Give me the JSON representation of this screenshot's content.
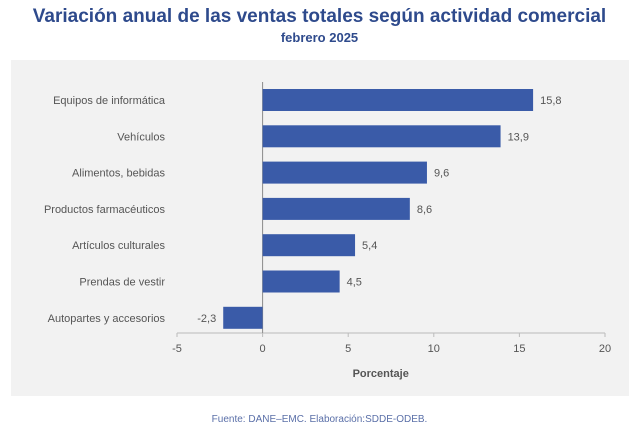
{
  "chart_data": {
    "type": "bar",
    "orientation": "horizontal",
    "title": "Variación anual de las ventas totales según actividad comercial",
    "subtitle": "febrero 2025",
    "categories": [
      "Equipos de informática",
      "Vehículos",
      "Alimentos, bebidas",
      "Productos farmacéuticos",
      "Artículos culturales",
      "Prendas de vestir",
      "Autopartes y accesorios"
    ],
    "values": [
      15.8,
      13.9,
      9.6,
      8.6,
      5.4,
      4.5,
      -2.3
    ],
    "value_labels": [
      "15,8",
      "13,9",
      "9,6",
      "8,6",
      "5,4",
      "4,5",
      "-2,3"
    ],
    "xlabel": "Porcentaje",
    "ylabel": "",
    "xlim": [
      -5,
      20
    ],
    "xticks": [
      -5,
      0,
      5,
      10,
      15,
      20
    ],
    "grid": false,
    "bar_color": "#3a5ba8"
  },
  "source": "Fuente: DANE–EMC. Elaboración:SDDE-ODEB."
}
